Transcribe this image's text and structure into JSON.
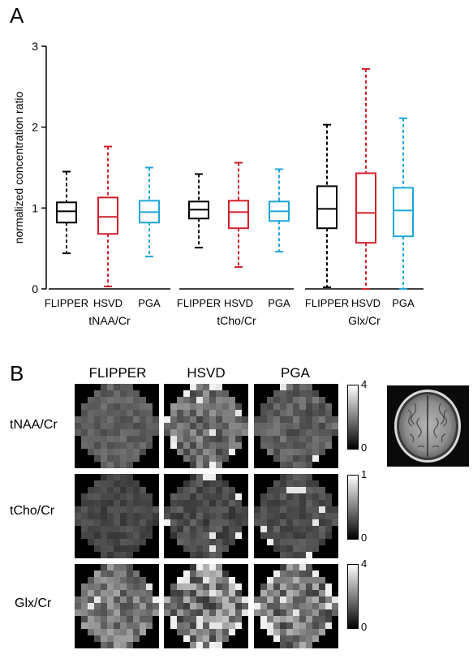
{
  "panel_a_label": "A",
  "panel_b_label": "B",
  "chart_data": {
    "type": "box",
    "ylabel": "normalized concentration ratio",
    "ylim": [
      0,
      3
    ],
    "yticks": [
      "0",
      "1",
      "2",
      "3"
    ],
    "groups": [
      {
        "name": "tNAA/Cr",
        "boxes": [
          {
            "label": "FLIPPER",
            "color": "#000000",
            "min": 0.44,
            "q1": 0.82,
            "median": 0.96,
            "q3": 1.07,
            "max": 1.45
          },
          {
            "label": "HSVD",
            "color": "#d0202a",
            "min": 0.03,
            "q1": 0.68,
            "median": 0.89,
            "q3": 1.13,
            "max": 1.76
          },
          {
            "label": "PGA",
            "color": "#1ea6d8",
            "min": 0.4,
            "q1": 0.82,
            "median": 0.95,
            "q3": 1.09,
            "max": 1.5
          }
        ]
      },
      {
        "name": "tCho/Cr",
        "boxes": [
          {
            "label": "FLIPPER",
            "color": "#000000",
            "min": 0.51,
            "q1": 0.87,
            "median": 0.98,
            "q3": 1.08,
            "max": 1.42
          },
          {
            "label": "HSVD",
            "color": "#d0202a",
            "min": 0.27,
            "q1": 0.75,
            "median": 0.95,
            "q3": 1.09,
            "max": 1.56
          },
          {
            "label": "PGA",
            "color": "#1ea6d8",
            "min": 0.46,
            "q1": 0.84,
            "median": 0.96,
            "q3": 1.08,
            "max": 1.48
          }
        ]
      },
      {
        "name": "Glx/Cr",
        "boxes": [
          {
            "label": "FLIPPER",
            "color": "#000000",
            "min": 0.02,
            "q1": 0.75,
            "median": 0.99,
            "q3": 1.27,
            "max": 2.03
          },
          {
            "label": "HSVD",
            "color": "#d0202a",
            "min": 0.0,
            "q1": 0.57,
            "median": 0.94,
            "q3": 1.43,
            "max": 2.72
          },
          {
            "label": "PGA",
            "color": "#1ea6d8",
            "min": 0.0,
            "q1": 0.65,
            "median": 0.97,
            "q3": 1.25,
            "max": 2.11
          }
        ]
      }
    ]
  },
  "maps": {
    "columns": [
      "FLIPPER",
      "HSVD",
      "PGA"
    ],
    "rows": [
      {
        "label": "tNAA/Cr",
        "scale_max": "4",
        "scale_min": "0"
      },
      {
        "label": "tCho/Cr",
        "scale_max": "1",
        "scale_min": "0"
      },
      {
        "label": "Glx/Cr",
        "scale_max": "4",
        "scale_min": "0"
      }
    ]
  }
}
